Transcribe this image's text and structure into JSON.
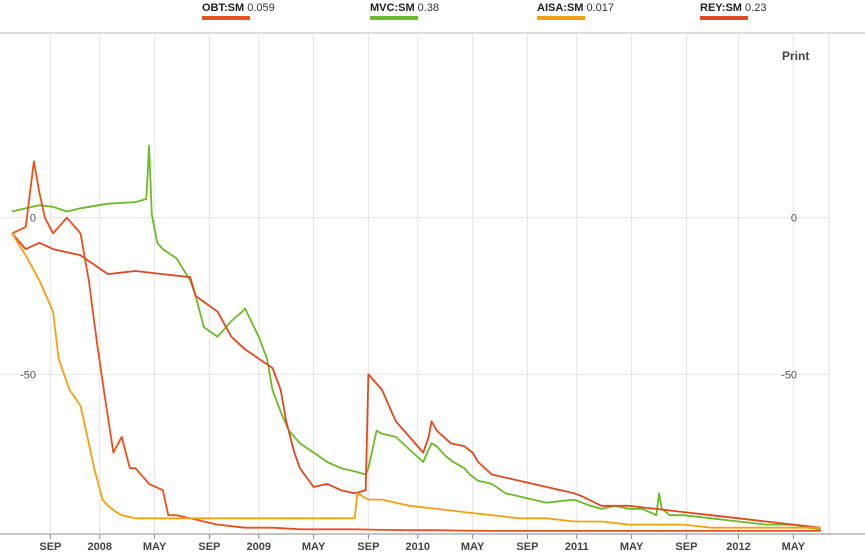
{
  "legend": [
    {
      "symbol": "OBT:SM",
      "value": "0.059",
      "color": "#e8501e"
    },
    {
      "symbol": "MVC:SM",
      "value": "0.38",
      "color": "#6aba2a"
    },
    {
      "symbol": "AISA:SM",
      "value": "0.017",
      "color": "#f5a013"
    },
    {
      "symbol": "REY:SM",
      "value": "0.23",
      "color": "#e04820"
    }
  ],
  "print_label": "Print",
  "chart_data": {
    "type": "line",
    "x_tick_labels": [
      "SEP",
      "2008",
      "MAY",
      "SEP",
      "2009",
      "MAY",
      "SEP",
      "2010",
      "MAY",
      "SEP",
      "2011",
      "MAY",
      "SEP",
      "2012",
      "MAY"
    ],
    "x_tick_index": [
      0.9,
      2.7,
      4.7,
      6.7,
      8.5,
      10.5,
      12.5,
      14.3,
      16.3,
      18.3,
      20.1,
      22.1,
      24.1,
      26,
      28
    ],
    "xlim": [
      -0.5,
      29.3
    ],
    "y_tick_labels": [
      "0",
      "0",
      "-50",
      "-50"
    ],
    "y_ticks": [
      0,
      -50
    ],
    "ylim": [
      -101,
      59
    ],
    "grid": true,
    "series": [
      {
        "name": "MVC:SM",
        "color": "#6aba2a",
        "x": [
          -0.5,
          0,
          0.5,
          1,
          1.5,
          2,
          3,
          4,
          4.4,
          4.5,
          4.6,
          4.8,
          5,
          5.5,
          6,
          6.2,
          6.5,
          7,
          7.5,
          7.9,
          8,
          8.5,
          8.8,
          9,
          9.3,
          9.6,
          10,
          10.5,
          11,
          11.5,
          12,
          12.4,
          12.5,
          12.8,
          13,
          13.5,
          14,
          14.5,
          14.8,
          15,
          15.3,
          15.6,
          16,
          16.2,
          16.5,
          17,
          17.5,
          18,
          18.5,
          19,
          20,
          20.3,
          20.6,
          21,
          21.5,
          22,
          22.5,
          23,
          23.1,
          23.2,
          23.5,
          24,
          25,
          26,
          27,
          28,
          28.5,
          29
        ],
        "y": [
          2,
          3,
          4,
          3.5,
          2,
          3,
          4.5,
          5,
          6,
          23,
          1,
          -8,
          -10,
          -13,
          -20,
          -25,
          -35,
          -38,
          -33,
          -30,
          -29,
          -38,
          -45,
          -55,
          -62,
          -68,
          -72,
          -75,
          -78,
          -80,
          -81,
          -82,
          -80,
          -68,
          -69,
          -70,
          -74,
          -78,
          -72,
          -73,
          -76,
          -78,
          -80,
          -82,
          -84,
          -85,
          -88,
          -89,
          -90,
          -91,
          -90,
          -91,
          -92,
          -93,
          -92,
          -93,
          -93,
          -95,
          -88,
          -93,
          -95,
          -95,
          -96,
          -97,
          -98,
          -98,
          -99,
          -99.5
        ]
      },
      {
        "name": "REY:SM",
        "color": "#e04820",
        "x": [
          -0.5,
          0,
          0.5,
          1,
          2,
          2.5,
          3,
          4,
          5,
          6,
          6.1,
          6.2,
          7,
          7.5,
          8,
          8.5,
          9,
          9.3,
          9.5,
          9.8,
          10,
          10.5,
          11,
          11.5,
          12,
          12.4,
          12.5,
          13,
          13.5,
          14,
          14.5,
          14.7,
          14.8,
          15,
          15.5,
          16,
          16.3,
          16.5,
          17,
          17.5,
          18,
          19,
          20,
          20.3,
          21,
          22,
          23,
          24,
          25,
          26,
          27,
          28,
          29
        ],
        "y": [
          -5,
          -10,
          -8,
          -10,
          -12,
          -15,
          -18,
          -17,
          -18,
          -19,
          -22,
          -25,
          -30,
          -38,
          -42,
          -45,
          -48,
          -55,
          -65,
          -75,
          -80,
          -86,
          -85,
          -87,
          -88,
          -87,
          -50,
          -55,
          -65,
          -70,
          -75,
          -70,
          -65,
          -68,
          -72,
          -73,
          -75,
          -78,
          -82,
          -83,
          -84,
          -86,
          -88,
          -89,
          -92,
          -92,
          -93,
          -94,
          -95,
          -96,
          -97,
          -98,
          -99
        ]
      },
      {
        "name": "OBT:SM",
        "color": "#e8501e",
        "x": [
          -0.5,
          0,
          0.3,
          0.5,
          0.7,
          1,
          1.5,
          2,
          2.3,
          2.6,
          2.9,
          3.2,
          3.5,
          3.8,
          4,
          4.5,
          5,
          5.2,
          5.5,
          6,
          6.5,
          7,
          7.5,
          8,
          9,
          10,
          11,
          12,
          13,
          14,
          15,
          16,
          17,
          18,
          19,
          20,
          21,
          22,
          23,
          24,
          25,
          26,
          27,
          28,
          29
        ],
        "y": [
          -5,
          -3,
          18,
          8,
          0,
          -5,
          0,
          -5,
          -20,
          -40,
          -58,
          -75,
          -70,
          -80,
          -80,
          -85,
          -87,
          -95,
          -95,
          -96,
          -97,
          -98,
          -98.5,
          -99,
          -99,
          -99.5,
          -99.5,
          -99.5,
          -99.7,
          -99.8,
          -99.8,
          -99.9,
          -100,
          -100,
          -100,
          -100,
          -100,
          -100,
          -100,
          -100,
          -100,
          -100,
          -100,
          -100,
          -100
        ]
      },
      {
        "name": "AISA:SM",
        "color": "#f5a013",
        "x": [
          -0.5,
          0,
          0.5,
          1,
          1.2,
          1.6,
          2,
          2.3,
          2.5,
          2.8,
          3,
          3.3,
          3.5,
          4,
          4.5,
          5,
          6,
          7,
          8,
          9,
          10,
          11,
          12,
          12.1,
          12.5,
          13,
          13.5,
          14,
          15,
          16,
          17,
          18,
          19,
          20,
          21,
          22,
          23,
          24,
          25,
          26,
          27,
          28,
          29
        ],
        "y": [
          -5,
          -12,
          -20,
          -30,
          -45,
          -55,
          -60,
          -72,
          -80,
          -90,
          -92,
          -94,
          -95,
          -96,
          -96,
          -96,
          -96,
          -96,
          -96,
          -96,
          -96,
          -96,
          -96,
          -88,
          -90,
          -90,
          -91,
          -92,
          -93,
          -94,
          -95,
          -96,
          -96,
          -97,
          -97,
          -98,
          -98,
          -98,
          -99,
          -99,
          -99,
          -99,
          -99
        ]
      }
    ]
  }
}
